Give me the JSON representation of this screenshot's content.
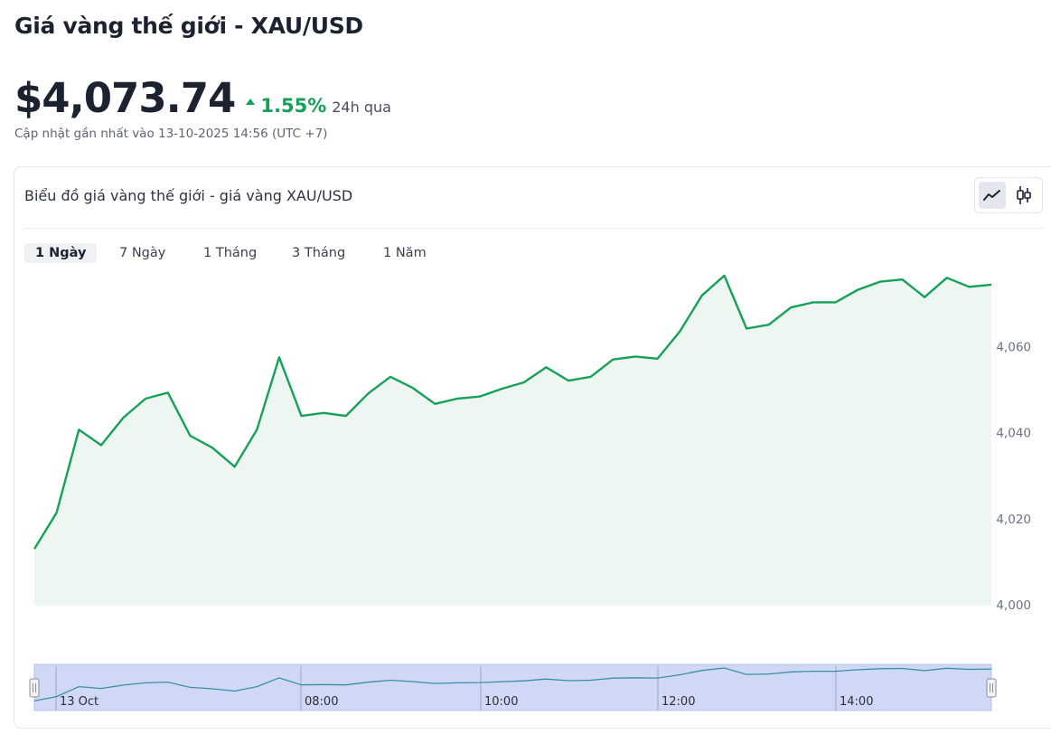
{
  "header": {
    "title": "Giá vàng thế giới - XAU/USD",
    "price": "$4,073.74",
    "change_pct": "1.55%",
    "change_period": "24h qua",
    "updated": "Cập nhật gần nhất vào 13-10-2025 14:56 (UTC +7)"
  },
  "card": {
    "title": "Biểu đồ giá vàng thế giới - giá vàng XAU/USD",
    "chart_types": [
      {
        "icon": "line-chart-icon",
        "active": true
      },
      {
        "icon": "candlestick-icon",
        "active": false
      }
    ]
  },
  "tabs": [
    {
      "label": "1 Ngày",
      "active": true
    },
    {
      "label": "7 Ngày",
      "active": false
    },
    {
      "label": "1 Tháng",
      "active": false
    },
    {
      "label": "3 Tháng",
      "active": false
    },
    {
      "label": "1 Năm",
      "active": false
    }
  ],
  "colors": {
    "line": "#16a05a",
    "area": "#edf6f0",
    "navigator_fill": "#c8d1f5",
    "navigator_line": "#3a8fa8"
  },
  "chart_data": {
    "type": "area",
    "ylim": [
      4000,
      4075
    ],
    "yticks": [
      4000,
      4020,
      4040,
      4060
    ],
    "ytick_labels": [
      "4,000",
      "4,020",
      "4,040",
      "4,060"
    ],
    "values": [
      4013.2,
      4021.6,
      4040.9,
      4037.3,
      4043.7,
      4048.1,
      4049.5,
      4039.5,
      4036.7,
      4032.3,
      4040.9,
      4057.7,
      4044.1,
      4044.8,
      4044.1,
      4049.3,
      4053.2,
      4050.6,
      4046.9,
      4048.1,
      4048.6,
      4050.4,
      4051.9,
      4055.4,
      4052.3,
      4053.2,
      4057.2,
      4057.9,
      4057.4,
      4063.7,
      4072.1,
      4076.7,
      4064.4,
      4065.3,
      4069.3,
      4070.5,
      4070.5,
      4073.4,
      4075.3,
      4075.8,
      4071.7,
      4076.2,
      4074.1,
      4074.6
    ],
    "navigator": {
      "x_labels": [
        "13 Oct",
        "08:00",
        "10:00",
        "12:00",
        "14:00"
      ]
    }
  }
}
